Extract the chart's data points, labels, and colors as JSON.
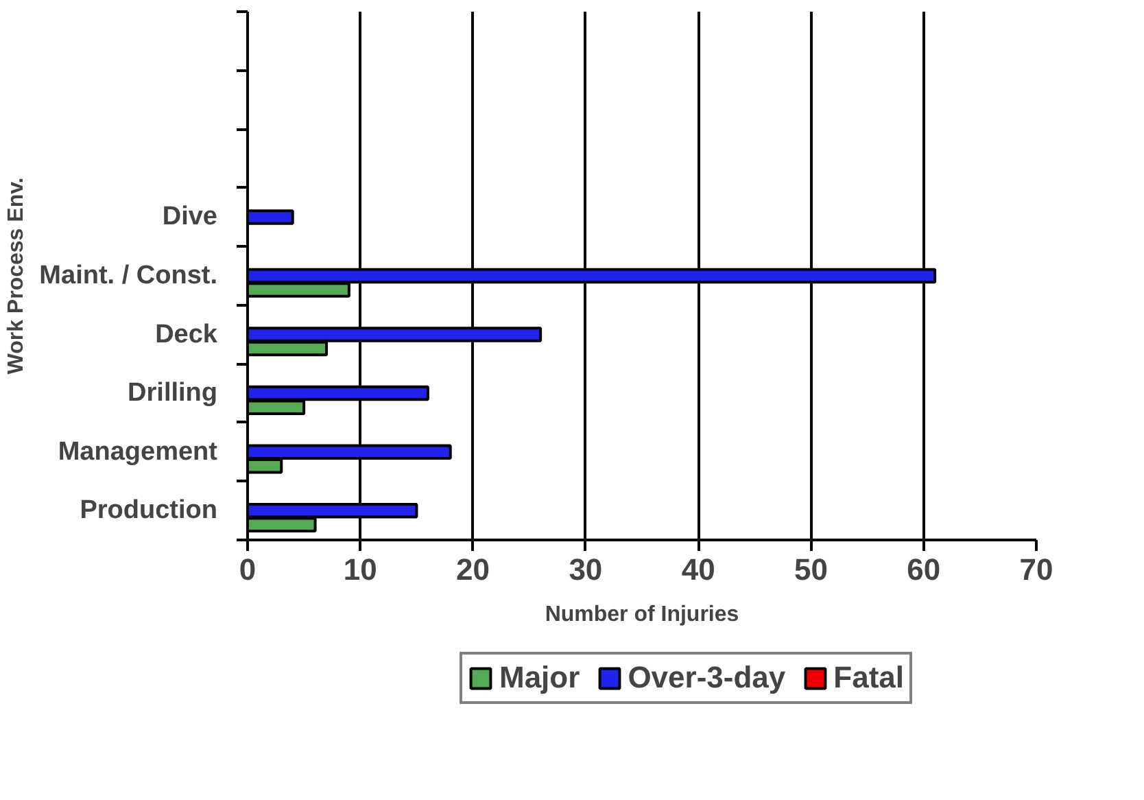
{
  "chart_data": {
    "type": "bar",
    "orientation": "horizontal",
    "categories": [
      null,
      null,
      null,
      "Dive",
      "Maint. / Const.",
      "Deck",
      "Drilling",
      "Management",
      "Production"
    ],
    "series": [
      {
        "name": "Major",
        "color": "#55aa55",
        "values": [
          null,
          null,
          null,
          null,
          9,
          7,
          5,
          3,
          6
        ]
      },
      {
        "name": "Over-3-day",
        "color": "#2222ee",
        "values": [
          null,
          null,
          null,
          4,
          61,
          26,
          16,
          18,
          15
        ]
      },
      {
        "name": "Fatal",
        "color": "#ee0000",
        "values": [
          null,
          null,
          null,
          null,
          null,
          null,
          null,
          null,
          null
        ]
      }
    ],
    "xlabel": "Number of Injuries",
    "ylabel": "Work Process Env.",
    "xlim": [
      0,
      70
    ],
    "xticks": [
      0,
      10,
      20,
      30,
      40,
      50,
      60,
      70
    ],
    "grid": "x",
    "legend": "bottom"
  }
}
